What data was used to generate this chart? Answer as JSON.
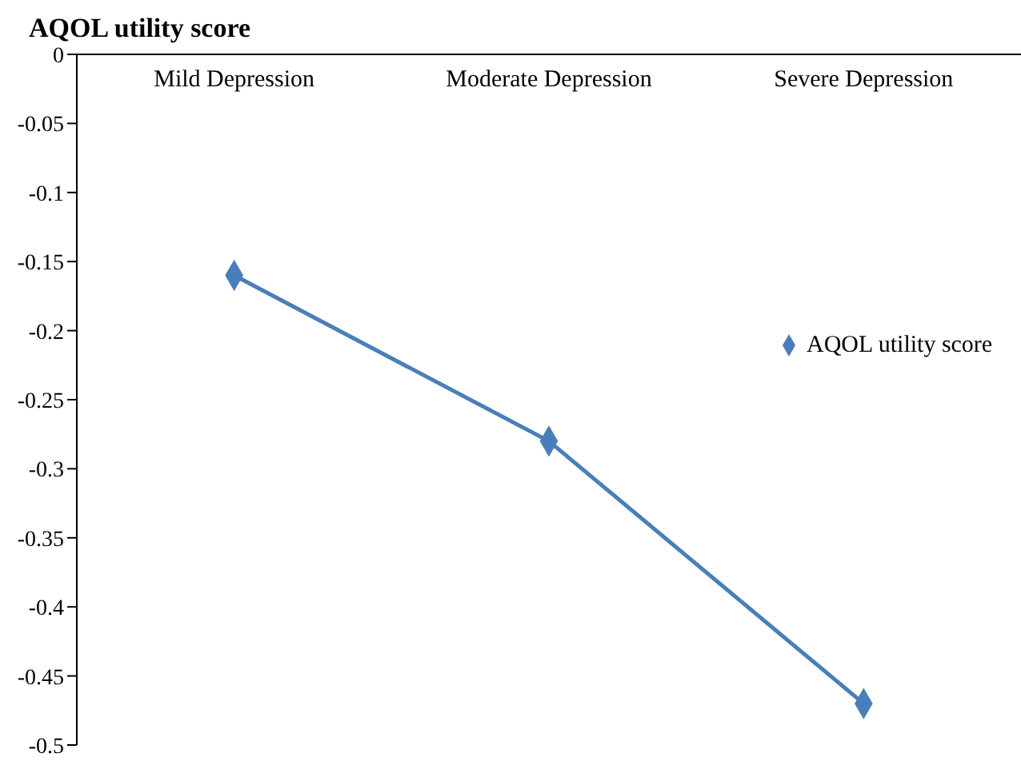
{
  "chart_data": {
    "type": "line",
    "title": "AQOL utility score",
    "categories": [
      "Mild Depression",
      "Moderate Depression",
      "Severe Depression"
    ],
    "series": [
      {
        "name": "AQOL utility score",
        "color": "#4a7ebb",
        "values": [
          -0.16,
          -0.28,
          -0.47
        ]
      }
    ],
    "ylim": [
      -0.5,
      0
    ],
    "yticks": [
      0,
      -0.05,
      -0.1,
      -0.15,
      -0.2,
      -0.25,
      -0.3,
      -0.35,
      -0.4,
      -0.45,
      -0.5
    ],
    "grid": false,
    "legend": "right",
    "marker": "diamond",
    "line_style": "solid"
  }
}
